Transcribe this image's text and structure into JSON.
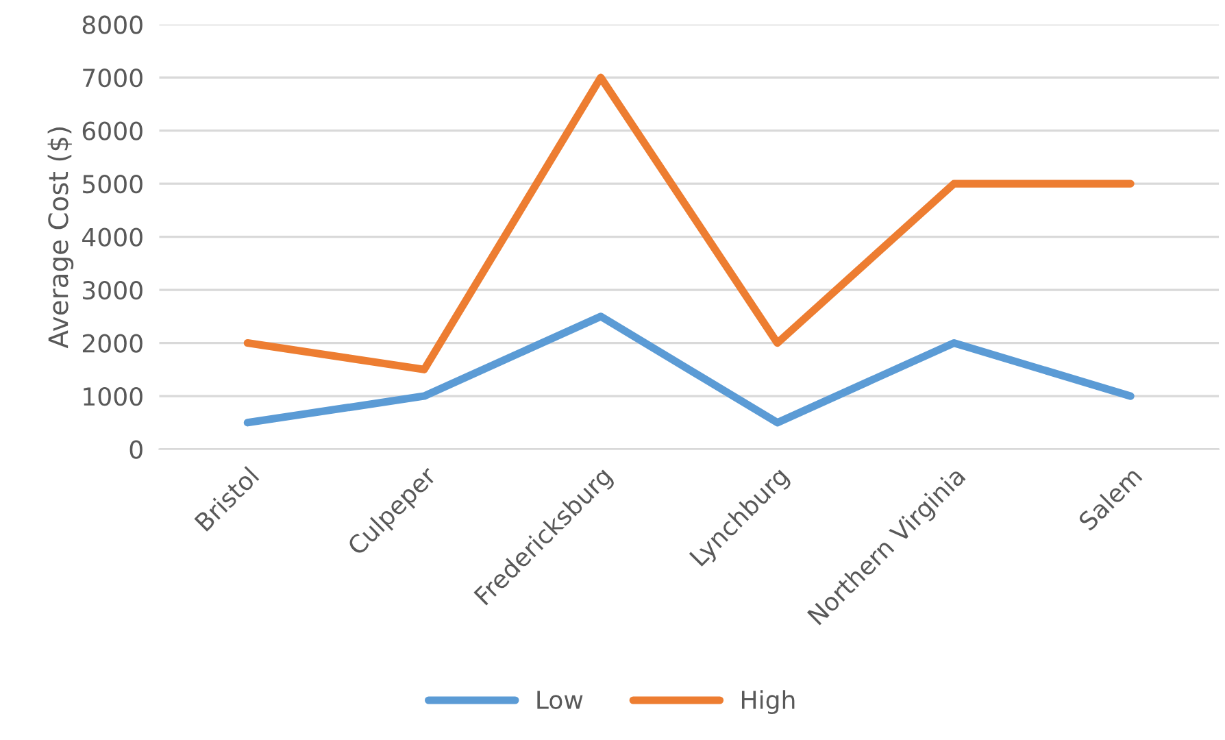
{
  "chart_data": {
    "type": "line",
    "ylabel": "Average Cost ($)",
    "categories": [
      "Bristol",
      "Culpeper",
      "Fredericksburg",
      "Lynchburg",
      "Northern Virginia",
      "Salem"
    ],
    "series": [
      {
        "name": "Low",
        "color": "#5b9bd5",
        "values": [
          500,
          1000,
          2500,
          500,
          2000,
          1000
        ]
      },
      {
        "name": "High",
        "color": "#ed7d31",
        "values": [
          2000,
          1500,
          7000,
          2000,
          5000,
          5000
        ]
      }
    ],
    "ylim": [
      0,
      8000
    ],
    "yticks": [
      0,
      1000,
      2000,
      3000,
      4000,
      5000,
      6000,
      7000,
      8000
    ],
    "grid": "y",
    "legend": "bottom",
    "marker": "none",
    "line_style": "solid"
  }
}
